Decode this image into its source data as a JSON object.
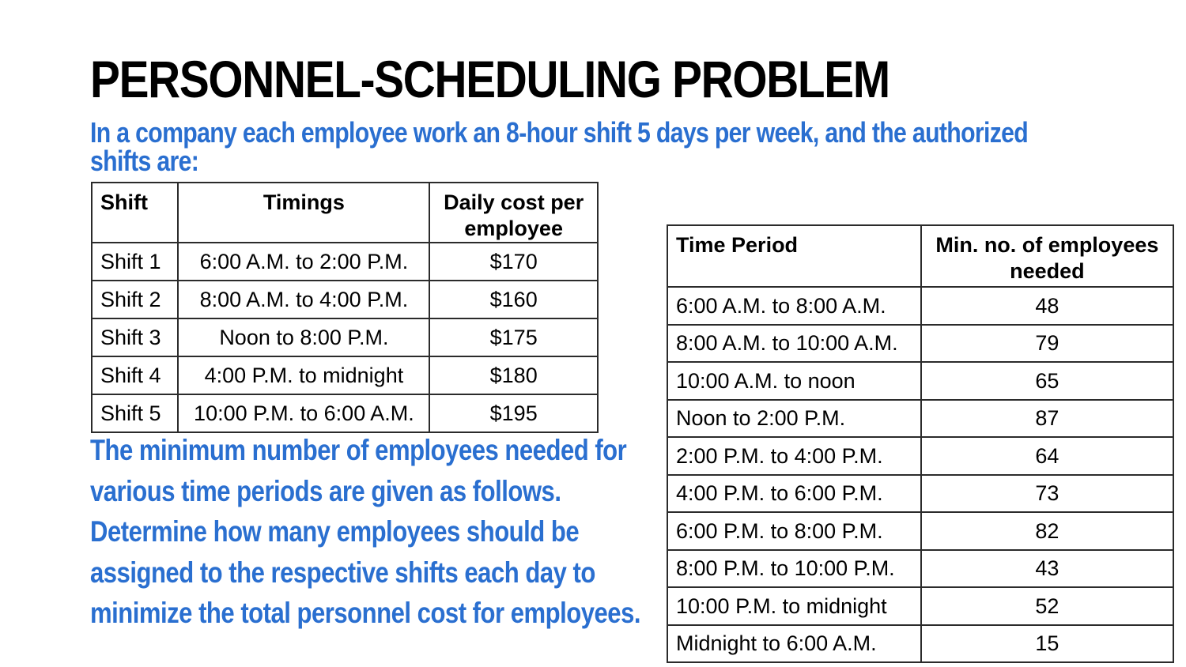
{
  "title": "PERSONNEL-SCHEDULING PROBLEM",
  "intro": "In a company each employee work an 8-hour shift 5 days per week, and the authorized shifts are:",
  "shift_table": {
    "headers": [
      "Shift",
      "Timings",
      "Daily cost per employee"
    ],
    "rows": [
      [
        "Shift 1",
        "6:00 A.M. to 2:00 P.M.",
        "$170"
      ],
      [
        "Shift 2",
        "8:00 A.M. to 4:00 P.M.",
        "$160"
      ],
      [
        "Shift 3",
        "Noon to 8:00 P.M.",
        "$175"
      ],
      [
        "Shift 4",
        "4:00 P.M. to midnight",
        "$180"
      ],
      [
        "Shift 5",
        "10:00 P.M. to 6:00 A.M.",
        "$195"
      ]
    ]
  },
  "task": "The minimum number of employees needed for various time periods are given as follows. Determine how many employees should be assigned to the respective shifts each day to minimize the total personnel cost for employees.",
  "period_table": {
    "headers": [
      "Time Period",
      "Min. no. of employees needed"
    ],
    "rows": [
      [
        "6:00 A.M. to 8:00 A.M.",
        "48"
      ],
      [
        "8:00 A.M. to 10:00 A.M.",
        "79"
      ],
      [
        "10:00 A.M. to noon",
        "65"
      ],
      [
        "Noon to 2:00 P.M.",
        "87"
      ],
      [
        "2:00 P.M. to 4:00 P.M.",
        "64"
      ],
      [
        "4:00 P.M. to 6:00 P.M.",
        "73"
      ],
      [
        "6:00 P.M. to 8:00 P.M.",
        "82"
      ],
      [
        "8:00 P.M. to 10:00 P.M.",
        "43"
      ],
      [
        "10:00 P.M. to midnight",
        "52"
      ],
      [
        "Midnight to 6:00 A.M.",
        "15"
      ]
    ]
  },
  "colors": {
    "title": "#000000",
    "accent_text": "#2a6fd0",
    "table_border": "#2b2b2b"
  }
}
